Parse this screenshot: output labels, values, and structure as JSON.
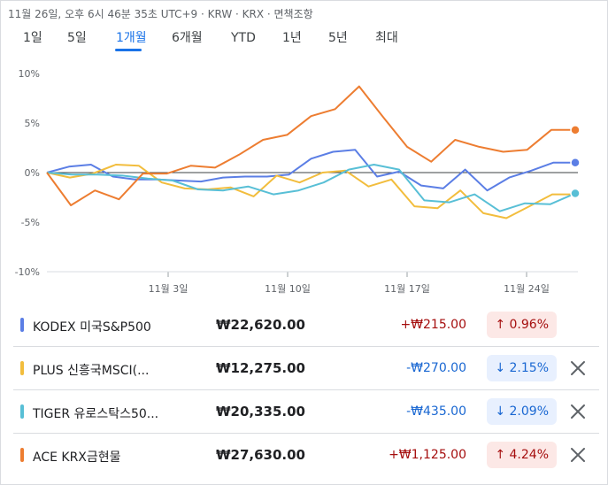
{
  "header": {
    "meta": "11월 26일, 오후 6시 46분 35초 UTC+9 · KRW · KRX · 면책조항"
  },
  "tabs": [
    {
      "label": "1일",
      "active": false
    },
    {
      "label": "5일",
      "active": false
    },
    {
      "label": "1개월",
      "active": true
    },
    {
      "label": "6개월",
      "active": false
    },
    {
      "label": "YTD",
      "active": false
    },
    {
      "label": "1년",
      "active": false
    },
    {
      "label": "5년",
      "active": false
    },
    {
      "label": "최대",
      "active": false
    }
  ],
  "chart_data": {
    "type": "line",
    "x_tick_labels": [
      "11월 3일",
      "11월 10일",
      "11월 17일",
      "11월 24일"
    ],
    "y_tick_labels": [
      "10%",
      "5%",
      "0%",
      "-5%",
      "-10%"
    ],
    "ylim": [
      -10,
      10
    ],
    "y_ticks": [
      10,
      5,
      0,
      -5,
      -10
    ],
    "x_tick_positions": [
      6,
      13,
      20,
      27
    ],
    "series": [
      {
        "name": "KODEX 미국S&P500",
        "color": "#5b7ee5",
        "end_marker": true,
        "x": [
          0,
          1,
          2,
          3,
          4,
          5,
          6,
          7,
          8,
          9,
          10,
          11,
          12,
          13,
          14,
          15,
          16,
          17,
          18,
          19,
          20,
          21,
          22,
          23,
          24,
          25,
          26,
          27,
          28,
          29,
          30
        ],
        "values": [
          0.0,
          0.6,
          0.8,
          -0.4,
          -0.7,
          -0.7,
          -0.8,
          -0.9,
          -0.5,
          -0.4,
          -0.4,
          -0.2,
          1.4,
          2.1,
          2.3,
          -0.4,
          0.1,
          -1.3,
          -1.6,
          0.3,
          -1.8,
          -0.5,
          0.2,
          1.0,
          1.0,
          1.0,
          1.0,
          1.0,
          1.0,
          1.0,
          1.0
        ]
      },
      {
        "name": "PLUS 신흥국MSCI(...",
        "color": "#f2bd3d",
        "end_marker": false,
        "values": [
          0.0,
          -0.5,
          -0.1,
          0.8,
          0.7,
          -1.0,
          -1.6,
          -1.7,
          -1.5,
          -2.4,
          -0.3,
          -1.0,
          0.0,
          0.2,
          -1.4,
          -0.7,
          -3.4,
          -3.6,
          -1.8,
          -4.1,
          -4.6,
          -3.4,
          -2.2,
          -2.2
        ]
      },
      {
        "name": "TIGER 유로스탁스50...",
        "color": "#58bfd6",
        "end_marker": true,
        "values": [
          0.0,
          -0.2,
          -0.2,
          -0.3,
          -0.6,
          -0.8,
          -1.7,
          -1.8,
          -1.4,
          -2.2,
          -1.8,
          -1.0,
          0.3,
          0.8,
          0.3,
          -2.8,
          -3.0,
          -2.2,
          -3.9,
          -3.1,
          -3.2,
          -2.1
        ]
      },
      {
        "name": "ACE KRX금현물",
        "color": "#ed7d31",
        "end_marker": true,
        "values": [
          0.0,
          -3.3,
          -1.8,
          -2.7,
          -0.1,
          -0.1,
          0.7,
          0.5,
          1.8,
          3.3,
          3.8,
          5.7,
          6.4,
          8.7,
          5.6,
          2.6,
          1.1,
          3.3,
          2.6,
          2.1,
          2.3,
          4.3,
          4.3
        ]
      }
    ]
  },
  "rows": [
    {
      "name": "KODEX 미국S&P500",
      "price": "₩22,620.00",
      "change": "+₩215.00",
      "pct": "↑ 0.96%",
      "dir": "up",
      "color": "#5b7ee5",
      "removable": false
    },
    {
      "name": "PLUS 신흥국MSCI(...",
      "price": "₩12,275.00",
      "change": "-₩270.00",
      "pct": "↓ 2.15%",
      "dir": "down",
      "color": "#f2bd3d",
      "removable": true
    },
    {
      "name": "TIGER 유로스탁스50...",
      "price": "₩20,335.00",
      "change": "-₩435.00",
      "pct": "↓ 2.09%",
      "dir": "down",
      "color": "#58bfd6",
      "removable": true
    },
    {
      "name": "ACE KRX금현물",
      "price": "₩27,630.00",
      "change": "+₩1,125.00",
      "pct": "↑ 4.24%",
      "dir": "up",
      "color": "#ed7d31",
      "removable": true
    }
  ]
}
